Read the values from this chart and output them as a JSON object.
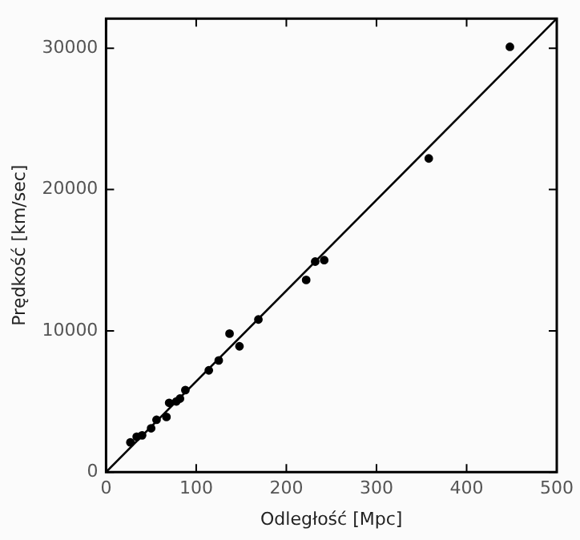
{
  "chart_data": {
    "type": "scatter",
    "xlabel": "Odległość [Mpc]",
    "ylabel": "Prędkość [km/sec]",
    "xlim": [
      0,
      500
    ],
    "ylim": [
      0,
      32100
    ],
    "xticks": [
      0,
      100,
      200,
      300,
      400,
      500
    ],
    "yticks": [
      0,
      10000,
      20000,
      30000
    ],
    "grid": false,
    "legend": false,
    "series": [
      {
        "color": "#000000",
        "marker": "circle",
        "x": [
          27,
          34,
          40,
          50,
          56,
          67,
          70,
          78,
          82,
          88,
          114,
          125,
          137,
          148,
          169,
          222,
          232,
          242,
          358,
          448
        ],
        "values": [
          2100,
          2500,
          2600,
          3100,
          3700,
          3900,
          4900,
          5000,
          5200,
          5800,
          7200,
          7900,
          9800,
          8900,
          10800,
          13600,
          14900,
          15000,
          22200,
          30100
        ]
      },
      {
        "type": "line",
        "color": "#000000",
        "marker": "none",
        "line_style": "solid",
        "x": [
          0,
          500
        ],
        "values": [
          0,
          32100
        ]
      }
    ]
  }
}
